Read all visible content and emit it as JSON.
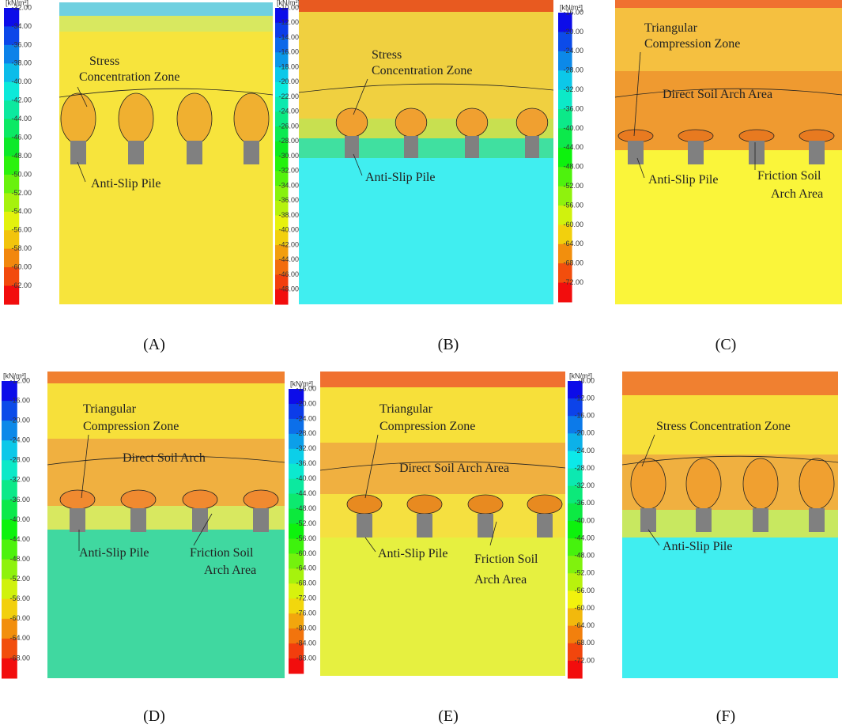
{
  "panels": [
    {
      "unit": "[kN/m²]",
      "ticks": [
        "-32.00",
        "-34.00",
        "-36.00",
        "-38.00",
        "-40.00",
        "-42.00",
        "-44.00",
        "-46.00",
        "-48.00",
        "-50.00",
        "-52.00",
        "-54.00",
        "-56.00",
        "-58.00",
        "-60.00",
        "-62.00"
      ],
      "annotations": [
        [
          "Stress",
          "Concentration Zone"
        ],
        [
          "Anti-Slip Pile"
        ]
      ],
      "caption": "(A)"
    },
    {
      "unit": "[kN/m²]",
      "ticks": [
        "-10.00",
        "-12.00",
        "-14.00",
        "-16.00",
        "-18.00",
        "-20.00",
        "-22.00",
        "-24.00",
        "-26.00",
        "-28.00",
        "-30.00",
        "-32.00",
        "-34.00",
        "-36.00",
        "-38.00",
        "-40.00",
        "-42.00",
        "-44.00",
        "-46.00",
        "-48.00"
      ],
      "annotations": [
        [
          "Stress",
          "Concentration Zone"
        ],
        [
          "Anti-Slip Pile"
        ]
      ],
      "caption": "(B)"
    },
    {
      "unit": "[kN/m²]",
      "ticks": [
        "-16.00",
        "-20.00",
        "-24.00",
        "-28.00",
        "-32.00",
        "-36.00",
        "-40.00",
        "-44.00",
        "-48.00",
        "-52.00",
        "-56.00",
        "-60.00",
        "-64.00",
        "-68.00",
        "-72.00"
      ],
      "annotations": [
        [
          "Triangular",
          "Compression Zone"
        ],
        [
          "Direct Soil Arch Area"
        ],
        [
          "Anti-Slip Pile"
        ],
        [
          "Friction Soil",
          "Arch Area"
        ]
      ],
      "caption": "(C)"
    },
    {
      "unit": "[kN/m²]",
      "ticks": [
        "-12.00",
        "-16.00",
        "-20.00",
        "-24.00",
        "-28.00",
        "-32.00",
        "-36.00",
        "-40.00",
        "-44.00",
        "-48.00",
        "-52.00",
        "-56.00",
        "-60.00",
        "-64.00",
        "-68.00"
      ],
      "annotations": [
        [
          "Triangular",
          "Compression Zone"
        ],
        [
          "Direct Soil Arch"
        ],
        [
          "Anti-Slip Pile"
        ],
        [
          "Friction Soil",
          "Arch Area"
        ]
      ],
      "caption": "(D)"
    },
    {
      "unit": "[kN/m²]",
      "ticks": [
        "-16.00",
        "-20.00",
        "-24.00",
        "-28.00",
        "-32.00",
        "-36.00",
        "-40.00",
        "-44.00",
        "-48.00",
        "-52.00",
        "-56.00",
        "-60.00",
        "-64.00",
        "-68.00",
        "-72.00",
        "-76.00",
        "-80.00",
        "-84.00",
        "-88.00"
      ],
      "annotations": [
        [
          "Triangular",
          "Compression Zone"
        ],
        [
          "Direct Soil Arch Area"
        ],
        [
          "Anti-Slip Pile"
        ],
        [
          "Friction Soil",
          "Arch Area"
        ]
      ],
      "caption": "(E)"
    },
    {
      "unit": "[kN/m²]",
      "ticks": [
        "-8.00",
        "-12.00",
        "-16.00",
        "-20.00",
        "-24.00",
        "-28.00",
        "-32.00",
        "-36.00",
        "-40.00",
        "-44.00",
        "-48.00",
        "-52.00",
        "-56.00",
        "-60.00",
        "-64.00",
        "-68.00",
        "-72.00"
      ],
      "annotations": [
        [
          "Stress Concentration Zone"
        ],
        [
          "Anti-Slip Pile"
        ]
      ],
      "caption": "(F)"
    }
  ]
}
